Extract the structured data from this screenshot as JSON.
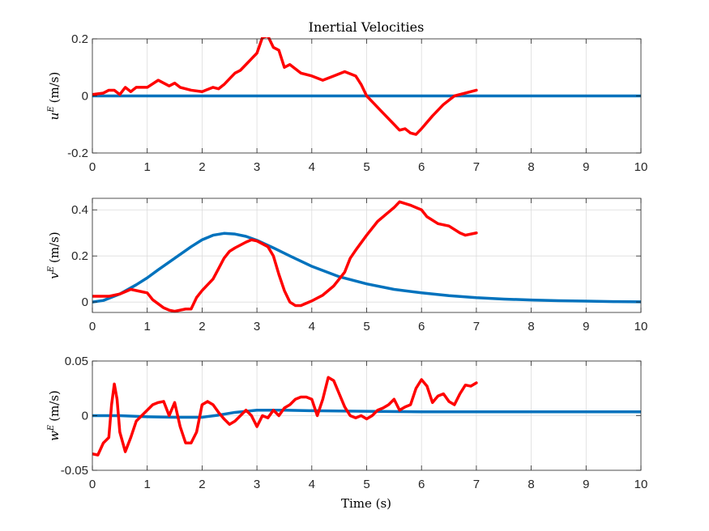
{
  "figure": {
    "title": "Inertial Velocities",
    "xlabel": "Time (s)"
  },
  "chart_data": [
    {
      "type": "line",
      "title": "Inertial Velocities",
      "ylabel_base": "u",
      "ylabel_sup": "E",
      "ylabel_unit": "(m/s)",
      "xlim": [
        0,
        10
      ],
      "ylim": [
        -0.2,
        0.2
      ],
      "xticks": [
        0,
        1,
        2,
        3,
        4,
        5,
        6,
        7,
        8,
        9,
        10
      ],
      "yticks": [
        -0.2,
        0,
        0.2
      ],
      "ytick_labels": [
        "-0.2",
        "0",
        "0.2"
      ],
      "grid": true,
      "series": [
        {
          "color": "#0072BD",
          "x": [
            0,
            10
          ],
          "y": [
            0,
            0
          ]
        },
        {
          "color": "#FF0000",
          "x": [
            0,
            0.2,
            0.3,
            0.4,
            0.5,
            0.6,
            0.7,
            0.8,
            1.0,
            1.2,
            1.4,
            1.5,
            1.6,
            1.8,
            2.0,
            2.2,
            2.3,
            2.4,
            2.5,
            2.6,
            2.7,
            2.8,
            2.9,
            3.0,
            3.1,
            3.2,
            3.3,
            3.4,
            3.5,
            3.6,
            3.8,
            4.0,
            4.2,
            4.4,
            4.6,
            4.8,
            4.9,
            5.0,
            5.1,
            5.3,
            5.5,
            5.6,
            5.7,
            5.8,
            5.9,
            6.0,
            6.2,
            6.4,
            6.6,
            6.8,
            7.0
          ],
          "y": [
            0.005,
            0.01,
            0.02,
            0.02,
            0.005,
            0.03,
            0.015,
            0.03,
            0.03,
            0.055,
            0.035,
            0.045,
            0.03,
            0.02,
            0.015,
            0.03,
            0.025,
            0.04,
            0.06,
            0.08,
            0.09,
            0.11,
            0.13,
            0.15,
            0.205,
            0.21,
            0.17,
            0.16,
            0.1,
            0.11,
            0.08,
            0.07,
            0.055,
            0.07,
            0.085,
            0.07,
            0.04,
            0.0,
            -0.02,
            -0.06,
            -0.1,
            -0.12,
            -0.115,
            -0.13,
            -0.135,
            -0.115,
            -0.07,
            -0.03,
            0.0,
            0.01,
            0.02
          ]
        }
      ]
    },
    {
      "type": "line",
      "ylabel_base": "v",
      "ylabel_sup": "E",
      "ylabel_unit": "(m/s)",
      "xlim": [
        0,
        10
      ],
      "ylim": [
        -0.045,
        0.45
      ],
      "xticks": [
        0,
        1,
        2,
        3,
        4,
        5,
        6,
        7,
        8,
        9,
        10
      ],
      "yticks": [
        0,
        0.2,
        0.4
      ],
      "ytick_labels": [
        "0",
        "0.2",
        "0.4"
      ],
      "grid": true,
      "series": [
        {
          "color": "#0072BD",
          "x": [
            0,
            0.2,
            0.5,
            0.8,
            1.0,
            1.2,
            1.5,
            1.8,
            2.0,
            2.2,
            2.4,
            2.6,
            2.8,
            3.0,
            3.3,
            3.6,
            4.0,
            4.5,
            5.0,
            5.5,
            6.0,
            6.5,
            7.0,
            7.5,
            8.0,
            8.5,
            9.0,
            9.5,
            10.0
          ],
          "y": [
            0.0,
            0.007,
            0.035,
            0.075,
            0.105,
            0.14,
            0.19,
            0.24,
            0.27,
            0.29,
            0.298,
            0.295,
            0.285,
            0.268,
            0.235,
            0.2,
            0.155,
            0.11,
            0.079,
            0.055,
            0.04,
            0.028,
            0.019,
            0.013,
            0.009,
            0.006,
            0.004,
            0.002,
            0.001
          ]
        },
        {
          "color": "#FF0000",
          "x": [
            0,
            0.3,
            0.5,
            0.7,
            0.9,
            1.0,
            1.1,
            1.3,
            1.4,
            1.5,
            1.7,
            1.8,
            1.9,
            2.0,
            2.1,
            2.2,
            2.3,
            2.4,
            2.5,
            2.6,
            2.8,
            2.9,
            3.0,
            3.2,
            3.3,
            3.4,
            3.5,
            3.6,
            3.7,
            3.8,
            4.0,
            4.2,
            4.4,
            4.6,
            4.7,
            4.8,
            5.0,
            5.2,
            5.4,
            5.5,
            5.6,
            5.8,
            6.0,
            6.1,
            6.3,
            6.5,
            6.7,
            6.8,
            7.0
          ],
          "y": [
            0.025,
            0.025,
            0.035,
            0.055,
            0.045,
            0.04,
            0.01,
            -0.025,
            -0.035,
            -0.04,
            -0.03,
            -0.03,
            0.02,
            0.05,
            0.075,
            0.1,
            0.145,
            0.19,
            0.22,
            0.235,
            0.26,
            0.27,
            0.265,
            0.24,
            0.2,
            0.12,
            0.05,
            0.0,
            -0.015,
            -0.015,
            0.005,
            0.03,
            0.07,
            0.13,
            0.19,
            0.225,
            0.29,
            0.35,
            0.39,
            0.41,
            0.435,
            0.42,
            0.4,
            0.37,
            0.34,
            0.33,
            0.3,
            0.29,
            0.3
          ]
        }
      ]
    },
    {
      "type": "line",
      "ylabel_base": "w",
      "ylabel_sup": "E",
      "ylabel_unit": "(m/s)",
      "xlim": [
        0,
        10
      ],
      "ylim": [
        -0.05,
        0.05
      ],
      "xticks": [
        0,
        1,
        2,
        3,
        4,
        5,
        6,
        7,
        8,
        9,
        10
      ],
      "yticks": [
        -0.05,
        0,
        0.05
      ],
      "ytick_labels": [
        "-0.05",
        "0",
        "0.05"
      ],
      "grid": true,
      "series": [
        {
          "color": "#0072BD",
          "x": [
            0,
            0.5,
            1.0,
            1.5,
            2.0,
            2.3,
            2.6,
            3.0,
            3.5,
            4.0,
            5.0,
            6.0,
            7.0,
            8.0,
            9.0,
            10.0
          ],
          "y": [
            0.0,
            0.0,
            -0.001,
            -0.0015,
            -0.0015,
            0.0005,
            0.003,
            0.005,
            0.005,
            0.0045,
            0.004,
            0.0035,
            0.0035,
            0.0035,
            0.0035,
            0.0035
          ]
        },
        {
          "color": "#FF0000",
          "x": [
            0,
            0.1,
            0.2,
            0.3,
            0.35,
            0.4,
            0.45,
            0.5,
            0.6,
            0.7,
            0.8,
            0.9,
            1.0,
            1.1,
            1.2,
            1.3,
            1.4,
            1.5,
            1.6,
            1.7,
            1.8,
            1.9,
            2.0,
            2.1,
            2.2,
            2.3,
            2.4,
            2.5,
            2.6,
            2.7,
            2.8,
            2.9,
            3.0,
            3.1,
            3.2,
            3.3,
            3.4,
            3.5,
            3.6,
            3.7,
            3.8,
            3.9,
            4.0,
            4.1,
            4.2,
            4.3,
            4.4,
            4.5,
            4.6,
            4.7,
            4.8,
            4.9,
            5.0,
            5.1,
            5.2,
            5.3,
            5.4,
            5.5,
            5.6,
            5.7,
            5.8,
            5.9,
            6.0,
            6.1,
            6.2,
            6.3,
            6.4,
            6.5,
            6.6,
            6.7,
            6.8,
            6.9,
            7.0
          ],
          "y": [
            -0.035,
            -0.036,
            -0.025,
            -0.02,
            0.01,
            0.029,
            0.015,
            -0.015,
            -0.033,
            -0.02,
            -0.005,
            0.0,
            0.005,
            0.01,
            0.012,
            0.013,
            0.0,
            0.012,
            -0.01,
            -0.025,
            -0.025,
            -0.015,
            0.01,
            0.013,
            0.01,
            0.003,
            -0.003,
            -0.008,
            -0.005,
            0.0,
            0.005,
            0.0,
            -0.01,
            0.0,
            -0.002,
            0.005,
            0.0,
            0.007,
            0.01,
            0.015,
            0.017,
            0.017,
            0.015,
            0.0,
            0.015,
            0.035,
            0.032,
            0.02,
            0.008,
            0.0,
            -0.002,
            0.0,
            -0.003,
            0.0,
            0.005,
            0.007,
            0.01,
            0.015,
            0.005,
            0.008,
            0.01,
            0.025,
            0.033,
            0.027,
            0.012,
            0.018,
            0.02,
            0.013,
            0.01,
            0.02,
            0.028,
            0.027,
            0.03
          ]
        }
      ]
    }
  ]
}
